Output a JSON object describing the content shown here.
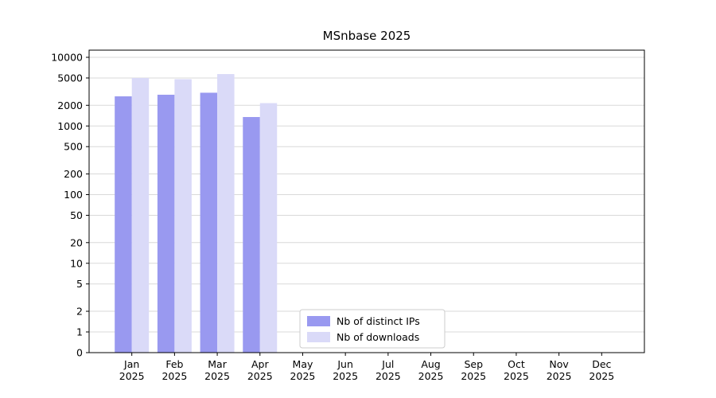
{
  "figure": {
    "title": "MSnbase 2025"
  },
  "chart_data": {
    "type": "bar",
    "title": "MSnbase 2025",
    "yscale": "symlog",
    "grid": true,
    "grid_color": "#d9d9d9",
    "axis_color": "#000000",
    "background": "#ffffff",
    "ylim": [
      0,
      14000
    ],
    "yticks": [
      0,
      1,
      2,
      5,
      10,
      20,
      50,
      100,
      200,
      500,
      1000,
      2000,
      5000,
      10000
    ],
    "categories": [
      "Jan 2025",
      "Feb 2025",
      "Mar 2025",
      "Apr 2025",
      "May 2025",
      "Jun 2025",
      "Jul 2025",
      "Aug 2025",
      "Sep 2025",
      "Oct 2025",
      "Nov 2025",
      "Dec 2025"
    ],
    "series": [
      {
        "name": "Nb of distinct IPs",
        "color": "#9999f0",
        "values": [
          2700,
          2850,
          3050,
          1350,
          null,
          null,
          null,
          null,
          null,
          null,
          null,
          null
        ]
      },
      {
        "name": "Nb of downloads",
        "color": "#dadaf8",
        "values": [
          5000,
          4800,
          5700,
          2150,
          null,
          null,
          null,
          null,
          null,
          null,
          null,
          null
        ]
      }
    ],
    "legend": {
      "position": "lower center",
      "border_color": "#cccccc",
      "background": "#ffffff",
      "labels": [
        "Nb of distinct IPs",
        "Nb of downloads"
      ]
    }
  }
}
